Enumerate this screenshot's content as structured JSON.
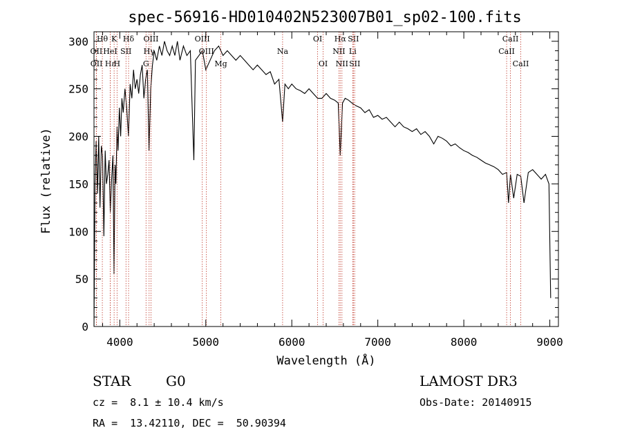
{
  "chart_data": {
    "type": "line",
    "title": "spec-56916-HD010402N523007B01_sp02-100.fits",
    "xlabel": "Wavelength (Å)",
    "ylabel": "Flux (relative)",
    "xlim": [
      3700,
      9100
    ],
    "ylim": [
      0,
      310
    ],
    "xticks": [
      4000,
      5000,
      6000,
      7000,
      8000,
      9000
    ],
    "yticks": [
      0,
      50,
      100,
      150,
      200,
      250,
      300
    ],
    "series": [
      {
        "name": "flux",
        "x": [
          3700,
          3712,
          3725,
          3740,
          3755,
          3770,
          3785,
          3800,
          3815,
          3830,
          3845,
          3860,
          3875,
          3890,
          3905,
          3920,
          3933,
          3945,
          3955,
          3968,
          3980,
          3995,
          4010,
          4025,
          4040,
          4060,
          4080,
          4101,
          4120,
          4140,
          4160,
          4180,
          4200,
          4220,
          4240,
          4260,
          4280,
          4300,
          4320,
          4340,
          4360,
          4380,
          4400,
          4430,
          4460,
          4490,
          4520,
          4550,
          4580,
          4610,
          4640,
          4670,
          4700,
          4740,
          4780,
          4820,
          4861,
          4880,
          4920,
          4960,
          5000,
          5050,
          5100,
          5150,
          5200,
          5250,
          5300,
          5350,
          5400,
          5450,
          5500,
          5550,
          5600,
          5650,
          5700,
          5750,
          5800,
          5850,
          5893,
          5920,
          5960,
          6000,
          6050,
          6100,
          6150,
          6200,
          6250,
          6300,
          6350,
          6400,
          6450,
          6500,
          6540,
          6563,
          6590,
          6620,
          6660,
          6700,
          6750,
          6800,
          6850,
          6900,
          6950,
          7000,
          7050,
          7100,
          7150,
          7200,
          7250,
          7300,
          7350,
          7400,
          7450,
          7500,
          7550,
          7600,
          7650,
          7700,
          7750,
          7800,
          7850,
          7900,
          7950,
          8000,
          8050,
          8100,
          8150,
          8200,
          8250,
          8300,
          8350,
          8400,
          8450,
          8498,
          8520,
          8542,
          8580,
          8620,
          8662,
          8700,
          8750,
          8800,
          8850,
          8900,
          8950,
          8990,
          9010
        ],
        "values": [
          0,
          150,
          195,
          140,
          200,
          125,
          190,
          180,
          95,
          185,
          150,
          160,
          175,
          120,
          155,
          180,
          55,
          170,
          150,
          210,
          185,
          230,
          200,
          240,
          225,
          250,
          230,
          200,
          255,
          240,
          270,
          250,
          260,
          245,
          265,
          275,
          240,
          260,
          270,
          185,
          250,
          275,
          290,
          280,
          295,
          285,
          300,
          290,
          285,
          295,
          285,
          300,
          280,
          295,
          285,
          290,
          175,
          280,
          285,
          290,
          270,
          280,
          290,
          295,
          285,
          290,
          285,
          280,
          285,
          280,
          275,
          270,
          275,
          270,
          265,
          268,
          255,
          260,
          215,
          255,
          250,
          255,
          250,
          248,
          245,
          250,
          245,
          240,
          240,
          245,
          240,
          238,
          235,
          180,
          235,
          240,
          238,
          235,
          232,
          230,
          225,
          228,
          220,
          222,
          218,
          220,
          215,
          210,
          215,
          210,
          208,
          205,
          208,
          202,
          205,
          200,
          192,
          200,
          198,
          195,
          190,
          192,
          188,
          185,
          183,
          180,
          178,
          175,
          172,
          170,
          168,
          165,
          160,
          162,
          130,
          160,
          135,
          160,
          158,
          130,
          162,
          165,
          160,
          155,
          160,
          150,
          30
        ]
      }
    ],
    "line_markers": [
      {
        "label": "Hθ",
        "wave": 3797,
        "row": 0
      },
      {
        "label": "OII",
        "wave": 3727,
        "row": 1
      },
      {
        "label": "OII",
        "wave": 3729,
        "row": 2
      },
      {
        "label": "Hε",
        "wave": 3889,
        "row": 2
      },
      {
        "label": "HeI",
        "wave": 3889,
        "row": 1
      },
      {
        "label": "K",
        "wave": 3934,
        "row": 0
      },
      {
        "label": "H",
        "wave": 3968,
        "row": 2
      },
      {
        "label": "SII",
        "wave": 4072,
        "row": 1
      },
      {
        "label": "Hδ",
        "wave": 4102,
        "row": 0
      },
      {
        "label": "OIII",
        "wave": 4363,
        "row": 0
      },
      {
        "label": "Hγ",
        "wave": 4341,
        "row": 1
      },
      {
        "label": "G",
        "wave": 4305,
        "row": 2
      },
      {
        "label": "OIII",
        "wave": 4959,
        "row": 0
      },
      {
        "label": "OIII",
        "wave": 5007,
        "row": 1
      },
      {
        "label": "Mg",
        "wave": 5175,
        "row": 2
      },
      {
        "label": "Na",
        "wave": 5893,
        "row": 1
      },
      {
        "label": "OI",
        "wave": 6300,
        "row": 0
      },
      {
        "label": "OI",
        "wave": 6364,
        "row": 2
      },
      {
        "label": "Hα",
        "wave": 6563,
        "row": 0
      },
      {
        "label": "NII",
        "wave": 6548,
        "row": 1
      },
      {
        "label": "NII",
        "wave": 6583,
        "row": 2
      },
      {
        "label": "SII",
        "wave": 6716,
        "row": 0
      },
      {
        "label": "Li",
        "wave": 6708,
        "row": 1
      },
      {
        "label": "SII",
        "wave": 6731,
        "row": 2
      },
      {
        "label": "CaII",
        "wave": 8542,
        "row": 0
      },
      {
        "label": "CaII",
        "wave": 8498,
        "row": 1
      },
      {
        "label": "CaII",
        "wave": 8662,
        "row": 2
      }
    ],
    "line_marker_color": "#c0392b",
    "curve_color": "#000000"
  },
  "info": {
    "object_class": "STAR",
    "subclass": "G0",
    "redshift": "cz =  8.1 ± 10.4 km/s",
    "coords": "RA =  13.42110, DEC =  50.90394",
    "survey": "LAMOST DR3",
    "obs_date": "Obs-Date: 20140915"
  }
}
